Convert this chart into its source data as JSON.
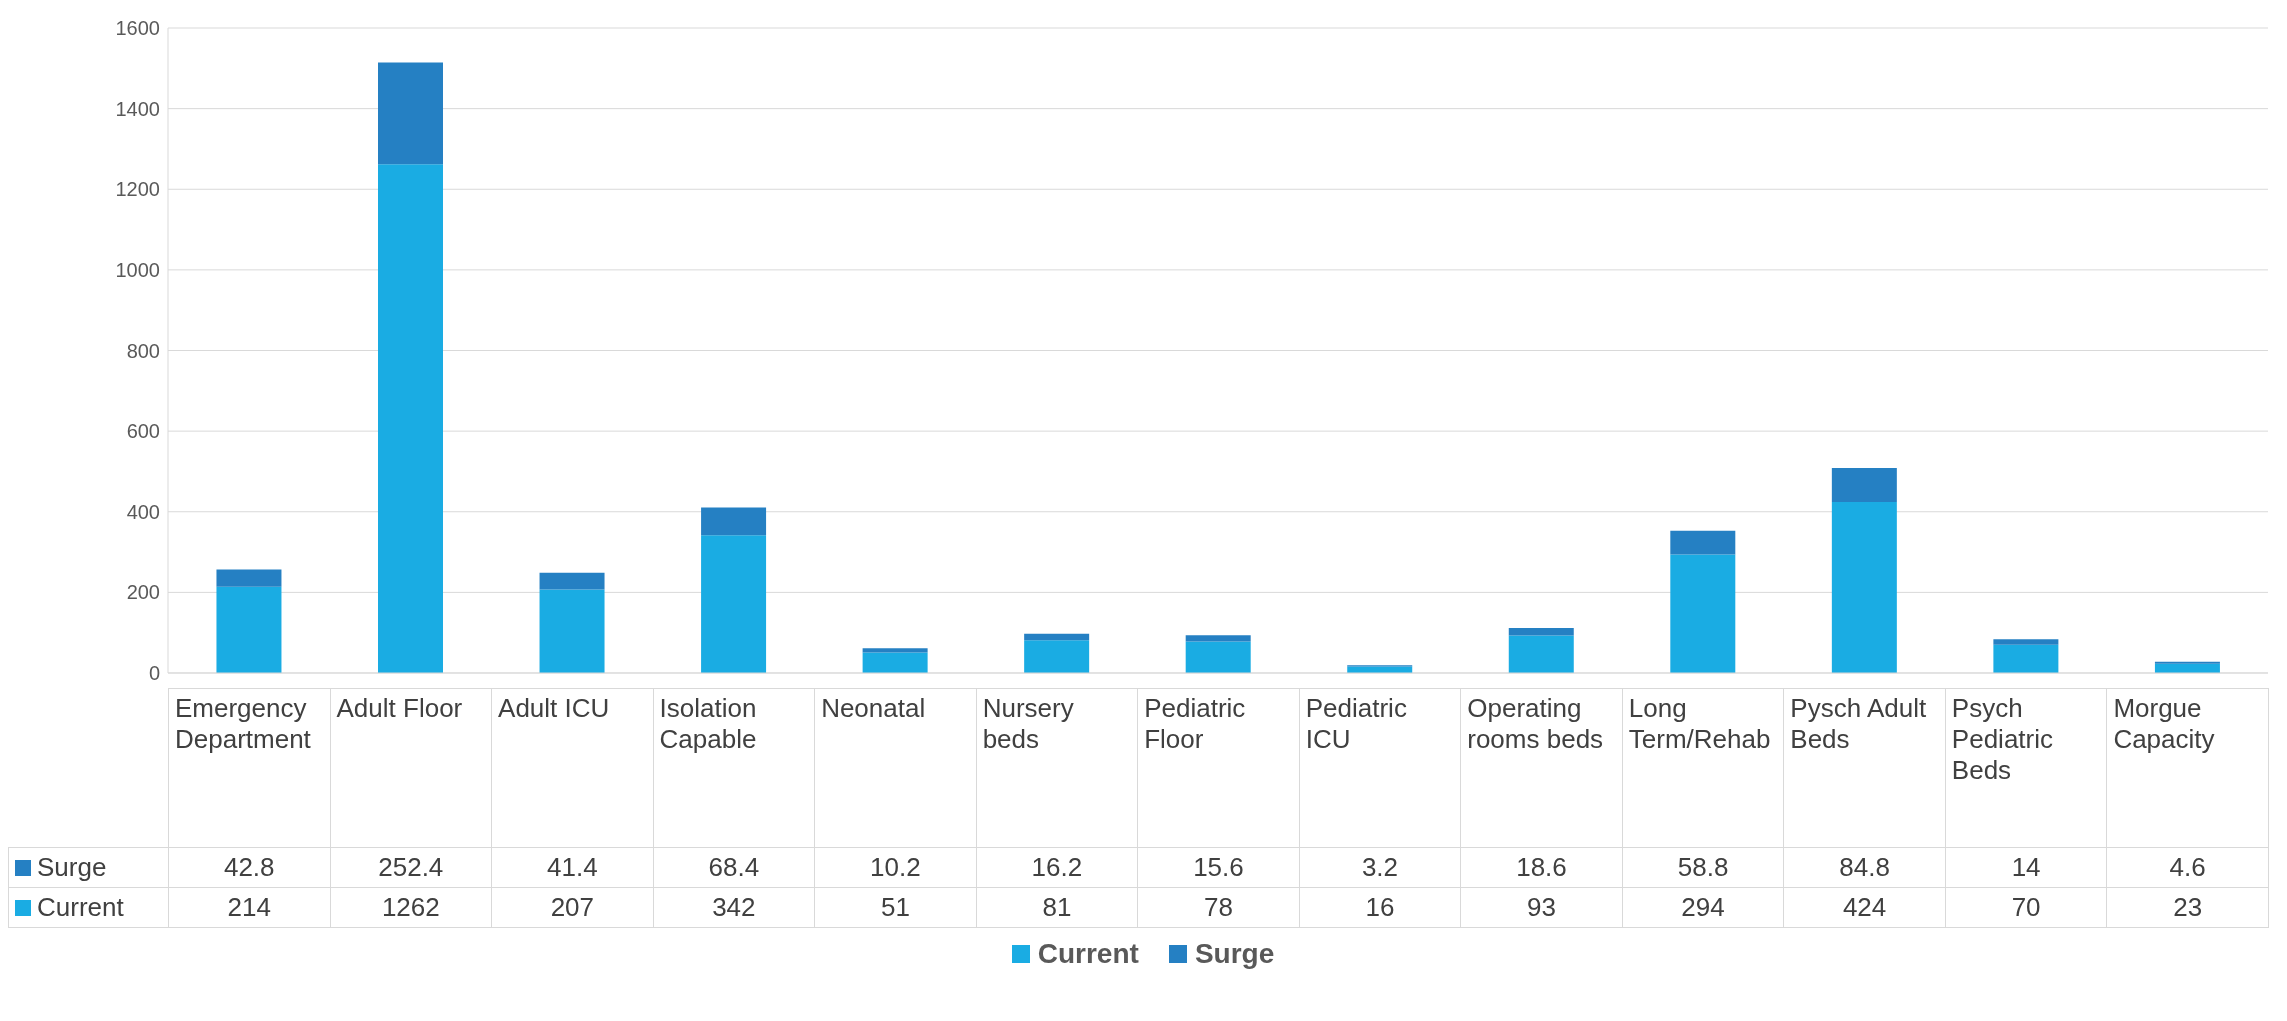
{
  "chart_data": {
    "type": "bar",
    "stacked": true,
    "categories": [
      "Emergency Department",
      "Adult Floor",
      "Adult ICU",
      "Isolation Capable",
      "Neonatal",
      "Nursery beds",
      "Pediatric Floor",
      "Pediatric ICU",
      "Operating rooms beds",
      "Long Term/Rehab",
      "Pysch Adult Beds",
      "Psych Pediatric Beds",
      "Morgue Capacity"
    ],
    "series": [
      {
        "name": "Current",
        "color": "#1aace3",
        "values": [
          214,
          1262,
          207,
          342,
          51,
          81,
          78,
          16,
          93,
          294,
          424,
          70,
          23
        ]
      },
      {
        "name": "Surge",
        "color": "#2580c3",
        "values": [
          42.8,
          252.4,
          41.4,
          68.4,
          10.2,
          16.2,
          15.6,
          3.2,
          18.6,
          58.8,
          84.8,
          14,
          4.6
        ]
      }
    ],
    "ylim": [
      0,
      1600
    ],
    "yticks": [
      0,
      200,
      400,
      600,
      800,
      1000,
      1200,
      1400,
      1600
    ],
    "grid": "y",
    "legend": "bottom",
    "data_labels": true
  }
}
